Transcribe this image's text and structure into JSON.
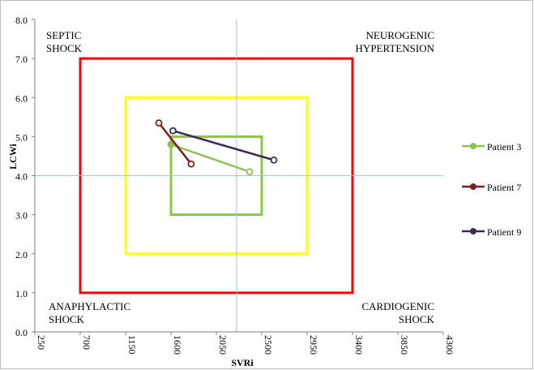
{
  "chart_data": {
    "type": "scatter",
    "xlabel": "SVRi",
    "ylabel": "LCWi",
    "xlim": [
      250,
      4300
    ],
    "ylim": [
      0,
      8
    ],
    "x_ticks": [
      "250",
      "700",
      "1150",
      "1600",
      "2050",
      "2500",
      "2950",
      "3400",
      "3850",
      "4300"
    ],
    "y_ticks": [
      "0.0",
      "1.0",
      "2.0",
      "3.0",
      "4.0",
      "5.0",
      "6.0",
      "7.0",
      "8.0"
    ],
    "reference_lines": {
      "x": 2250,
      "y": 4.0
    },
    "quadrant_labels": {
      "top_left": [
        "SEPTIC",
        "SHOCK"
      ],
      "top_right": [
        "NEUROGENIC",
        "HYPERTENSION"
      ],
      "bottom_left": [
        "ANAPHYLACTIC",
        "SHOCK"
      ],
      "bottom_right": [
        "CARDIOGENIC",
        "SHOCK"
      ]
    },
    "zones": [
      {
        "color": "#ff0000",
        "x": [
          700,
          3400
        ],
        "y": [
          1.0,
          7.0
        ]
      },
      {
        "color": "#ffff00",
        "x": [
          1150,
          2950
        ],
        "y": [
          2.0,
          6.0
        ]
      },
      {
        "color": "#8cc63f",
        "x": [
          1600,
          2500
        ],
        "y": [
          3.0,
          5.0
        ]
      }
    ],
    "series": [
      {
        "name": "Patient 3",
        "color": "#92c050",
        "x": [
          1600,
          2380
        ],
        "y": [
          4.8,
          4.1
        ]
      },
      {
        "name": "Patient 7",
        "color": "#7b1f1f",
        "x": [
          1480,
          1800
        ],
        "y": [
          5.35,
          4.3
        ]
      },
      {
        "name": "Patient 9",
        "color": "#3c2a55",
        "x": [
          1620,
          2620
        ],
        "y": [
          5.15,
          4.4
        ]
      }
    ],
    "legend_position": "right"
  }
}
